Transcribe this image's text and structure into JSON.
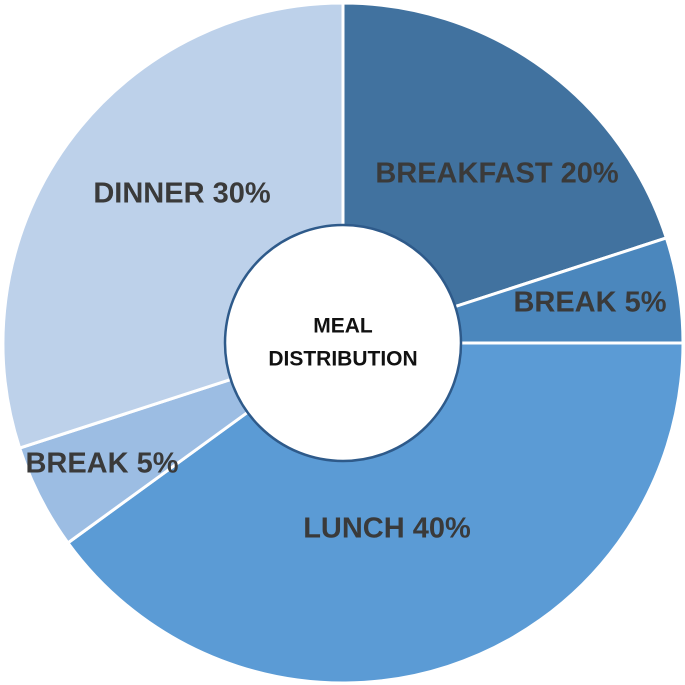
{
  "chart_data": {
    "type": "pie",
    "donut": true,
    "center_title": [
      "MEAL",
      "DISTRIBUTION"
    ],
    "categories": [
      "BREAKFAST",
      "BREAK",
      "LUNCH",
      "BREAK",
      "DINNER"
    ],
    "values": [
      20,
      5,
      40,
      5,
      30
    ],
    "labels": [
      "BREAKFAST 20%",
      "BREAK 5%",
      "LUNCH 40%",
      "BREAK 5%",
      "DINNER 30%"
    ],
    "colors": [
      "#41729f",
      "#4b87bd",
      "#5b9bd5",
      "#9cbde3",
      "#bdd1ea"
    ],
    "start_angle": "12 o'clock",
    "direction": "clockwise",
    "legend": "none"
  }
}
